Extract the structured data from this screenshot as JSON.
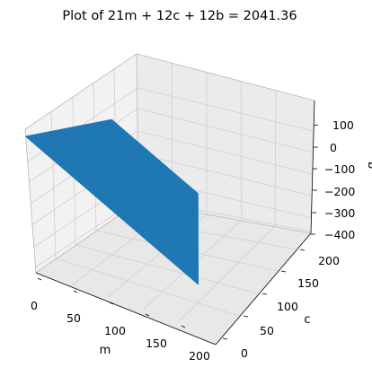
{
  "chart_data": {
    "type": "surface3d",
    "title": "Plot of 21m + 12c + 12b = 2041.36",
    "xlabel": "m",
    "ylabel": "c",
    "zlabel": "b",
    "xlim": [
      0,
      210
    ],
    "ylim": [
      0,
      210
    ],
    "zlim": [
      -400,
      200
    ],
    "xticks": [
      "0",
      "50",
      "100",
      "150",
      "200"
    ],
    "yticks": [
      "0",
      "50",
      "100",
      "150",
      "200"
    ],
    "zticks": [
      "100",
      "0",
      "−100",
      "−200",
      "−300",
      "−400"
    ],
    "grid": true,
    "series": [
      {
        "color": "#1f77b4",
        "vertices": [
          {
            "m": 0,
            "c": 0,
            "b": 170.1
          },
          {
            "m": 0,
            "c": 170.1,
            "b": 0
          },
          {
            "m": 97.2,
            "c": 170.1,
            "b": -170.1
          },
          {
            "m": 194.4,
            "c": 0,
            "b": -170.1
          }
        ]
      }
    ]
  }
}
